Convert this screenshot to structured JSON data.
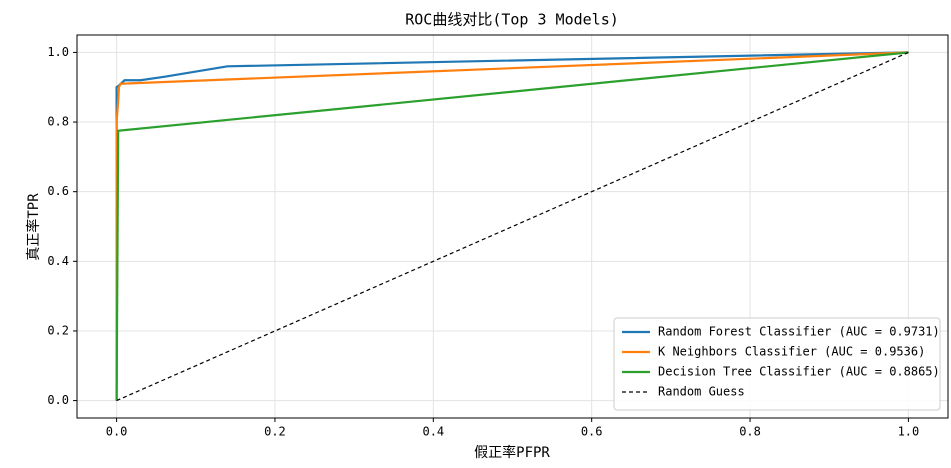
{
  "chart_data": {
    "type": "line",
    "title": "ROC曲线对比(Top 3 Models)",
    "x_label": "假正率PFPR",
    "y_label": "真正率TPR",
    "xlim": [
      -0.05,
      1.05
    ],
    "ylim": [
      -0.05,
      1.05
    ],
    "xticks": [
      {
        "value": 0,
        "label": "0.0"
      },
      {
        "value": 0.2,
        "label": "0.2"
      },
      {
        "value": 0.4,
        "label": "0.4"
      },
      {
        "value": 0.6,
        "label": "0.6"
      },
      {
        "value": 0.8,
        "label": "0.8"
      },
      {
        "value": 1,
        "label": "1.0"
      }
    ],
    "yticks": [
      {
        "value": 0,
        "label": "0.0"
      },
      {
        "value": 0.2,
        "label": "0.2"
      },
      {
        "value": 0.4,
        "label": "0.4"
      },
      {
        "value": 0.6,
        "label": "0.6"
      },
      {
        "value": 0.8,
        "label": "0.8"
      },
      {
        "value": 1,
        "label": "1.0"
      }
    ],
    "grid": true,
    "legend": "lower right",
    "series": [
      {
        "name": "Random Forest Classifier (AUC = 0.9731)",
        "color": "#1f77b4",
        "dash": false,
        "x": [
          0,
          0,
          0.003,
          0.01,
          0.03,
          0.06,
          0.14,
          1
        ],
        "values": [
          0,
          0.9,
          0.905,
          0.92,
          0.92,
          0.93,
          0.96,
          1
        ]
      },
      {
        "name": "K Neighbors Classifier (AUC = 0.9536)",
        "color": "#ff7f0e",
        "dash": false,
        "x": [
          0,
          0,
          0.002,
          0.003,
          0.005,
          1
        ],
        "values": [
          0,
          0.8,
          0.86,
          0.9,
          0.91,
          1
        ]
      },
      {
        "name": "Decision Tree Classifier (AUC = 0.8865)",
        "color": "#2ca02c",
        "dash": false,
        "x": [
          0,
          0.002,
          1
        ],
        "values": [
          0,
          0.775,
          1
        ]
      },
      {
        "name": "Random Guess",
        "color": "#000000",
        "dash": true,
        "x": [
          0,
          1
        ],
        "values": [
          0,
          1
        ]
      }
    ]
  }
}
